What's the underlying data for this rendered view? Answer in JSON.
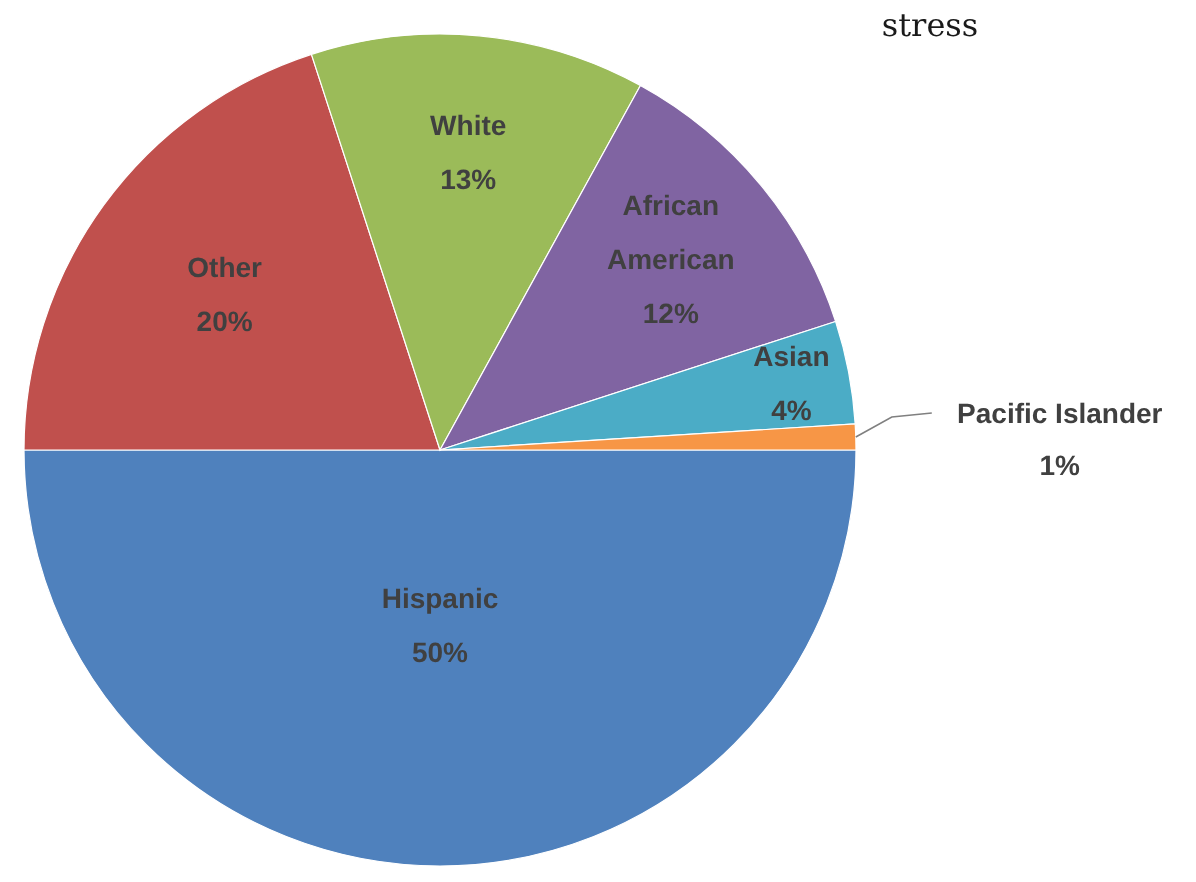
{
  "chart_data": {
    "type": "pie",
    "annotations": [
      "stress"
    ],
    "categories": [
      "Hispanic",
      "Other",
      "White",
      "African American",
      "Asian",
      "Pacific Islander"
    ],
    "values": [
      50,
      20,
      13,
      12,
      4,
      1
    ],
    "value_labels": [
      "50%",
      "20%",
      "13%",
      "12%",
      "4%",
      "1%"
    ],
    "colors": [
      "#4f81bd",
      "#c0504d",
      "#9bbb59",
      "#8064a2",
      "#4bacc6",
      "#f79646"
    ]
  }
}
